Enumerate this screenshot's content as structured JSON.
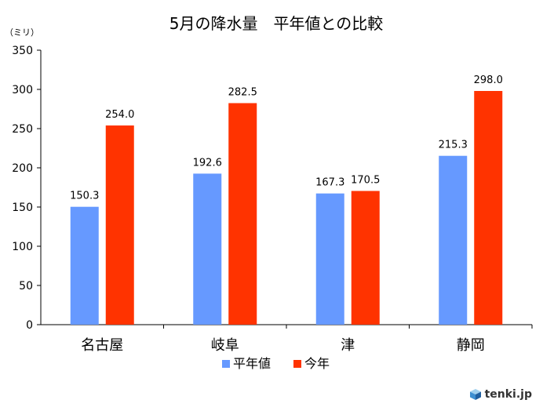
{
  "chart_data": {
    "type": "bar",
    "title": "5月の降水量　平年値との比較",
    "unit_label": "（ミリ）",
    "categories": [
      "名古屋",
      "岐阜",
      "津",
      "静岡"
    ],
    "series": [
      {
        "name": "平年値",
        "color": "#6699ff",
        "values": [
          150.3,
          192.6,
          167.3,
          215.3
        ]
      },
      {
        "name": "今年",
        "color": "#ff3300",
        "values": [
          254.0,
          282.5,
          170.5,
          298.0
        ]
      }
    ],
    "value_labels": [
      [
        "150.3",
        "192.6",
        "167.3",
        "215.3"
      ],
      [
        "254.0",
        "282.5",
        "170.5",
        "298.0"
      ]
    ],
    "ylim": [
      0,
      350
    ],
    "yticks": [
      0,
      50,
      100,
      150,
      200,
      250,
      300,
      350
    ],
    "grid": false,
    "legend_position": "bottom"
  },
  "logo": {
    "text": "tenki.jp"
  }
}
